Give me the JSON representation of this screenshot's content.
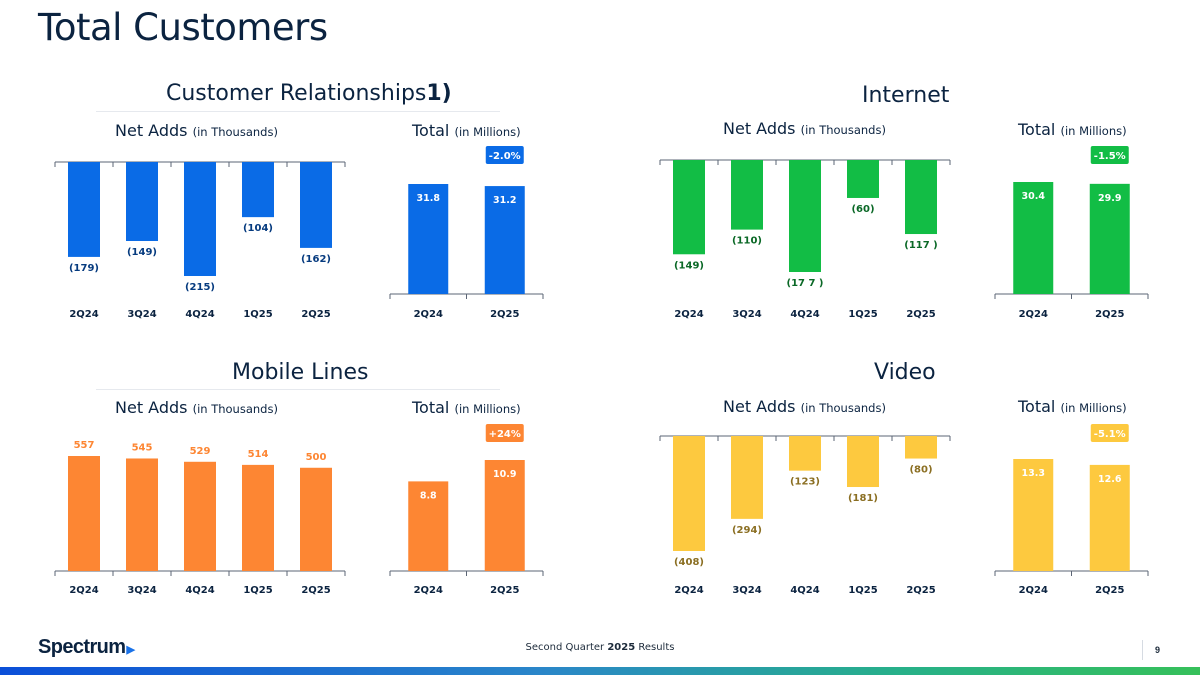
{
  "page": {
    "title": "Total Customers",
    "footer": {
      "prefix": "Second Quarter",
      "year": "2025",
      "suffix": "Results"
    },
    "page_number": "9",
    "logo": "Spectrum"
  },
  "colors": {
    "blue": "#0a6be6",
    "green": "#12bd45",
    "orange": "#fd8633",
    "yellow": "#fdc93f",
    "navy": "#0b2340"
  },
  "labels": {
    "net_adds": "Net Adds",
    "total": "Total",
    "in_thousands": "(in Thousands)",
    "in_millions": "(in Millions)"
  },
  "sections": {
    "customers": {
      "title": "Customer Relationships",
      "footnote": "1)"
    },
    "internet": {
      "title": "Internet"
    },
    "mobile": {
      "title": "Mobile Lines"
    },
    "video": {
      "title": "Video"
    }
  },
  "chart_data": [
    {
      "id": "cust-net",
      "type": "bar",
      "title": "Net Adds",
      "ylabel": "(in Thousands)",
      "color": "#0a6be6",
      "categories": [
        "2Q24",
        "3Q24",
        "4Q24",
        "1Q25",
        "2Q25"
      ],
      "values": [
        -179,
        -149,
        -215,
        -104,
        -162
      ],
      "value_labels": [
        "(179)",
        "(149)",
        "(215)",
        "(104)",
        "(162)"
      ],
      "ylim": [
        -215,
        0
      ]
    },
    {
      "id": "cust-total",
      "type": "bar",
      "title": "Total",
      "ylabel": "(in Millions)",
      "color": "#0a6be6",
      "categories": [
        "2Q24",
        "2Q25"
      ],
      "values": [
        31.8,
        31.2
      ],
      "value_labels": [
        "31.8",
        "31.2"
      ],
      "change": "-2.0%",
      "ylim": [
        0,
        31.8
      ]
    },
    {
      "id": "int-net",
      "type": "bar",
      "title": "Net Adds",
      "ylabel": "(in Thousands)",
      "color": "#12bd45",
      "categories": [
        "2Q24",
        "3Q24",
        "4Q24",
        "1Q25",
        "2Q25"
      ],
      "values": [
        -149,
        -110,
        -177,
        -60,
        -117
      ],
      "value_labels": [
        "(149)",
        "(110)",
        "(17 7 )",
        "(60)",
        "(117 )"
      ],
      "ylim": [
        -177,
        0
      ]
    },
    {
      "id": "int-total",
      "type": "bar",
      "title": "Total",
      "ylabel": "(in Millions)",
      "color": "#12bd45",
      "categories": [
        "2Q24",
        "2Q25"
      ],
      "values": [
        30.4,
        29.9
      ],
      "value_labels": [
        "30.4",
        "29.9"
      ],
      "change": "-1.5%",
      "ylim": [
        0,
        30.4
      ]
    },
    {
      "id": "mob-net",
      "type": "bar",
      "title": "Net Adds",
      "ylabel": "(in Thousands)",
      "color": "#fd8633",
      "categories": [
        "2Q24",
        "3Q24",
        "4Q24",
        "1Q25",
        "2Q25"
      ],
      "values": [
        557,
        545,
        529,
        514,
        500
      ],
      "value_labels": [
        "557",
        "545",
        "529",
        "514",
        "500"
      ],
      "ylim": [
        0,
        557
      ]
    },
    {
      "id": "mob-total",
      "type": "bar",
      "title": "Total",
      "ylabel": "(in Millions)",
      "color": "#fd8633",
      "categories": [
        "2Q24",
        "2Q25"
      ],
      "values": [
        8.8,
        10.9
      ],
      "value_labels": [
        "8.8",
        "10.9"
      ],
      "change": "+24%",
      "ylim": [
        0,
        10.9
      ]
    },
    {
      "id": "vid-net",
      "type": "bar",
      "title": "Net Adds",
      "ylabel": "(in Thousands)",
      "color": "#fdc93f",
      "categories": [
        "2Q24",
        "3Q24",
        "4Q24",
        "1Q25",
        "2Q25"
      ],
      "values": [
        -408,
        -294,
        -123,
        -181,
        -80
      ],
      "value_labels": [
        "(408)",
        "(294)",
        "(123)",
        "(181)",
        "(80)"
      ],
      "ylim": [
        -408,
        0
      ]
    },
    {
      "id": "vid-total",
      "type": "bar",
      "title": "Total",
      "ylabel": "(in Millions)",
      "color": "#fdc93f",
      "categories": [
        "2Q24",
        "2Q25"
      ],
      "values": [
        13.3,
        12.6
      ],
      "value_labels": [
        "13.3",
        "12.6"
      ],
      "change": "-5.1%",
      "ylim": [
        0,
        13.3
      ]
    }
  ]
}
